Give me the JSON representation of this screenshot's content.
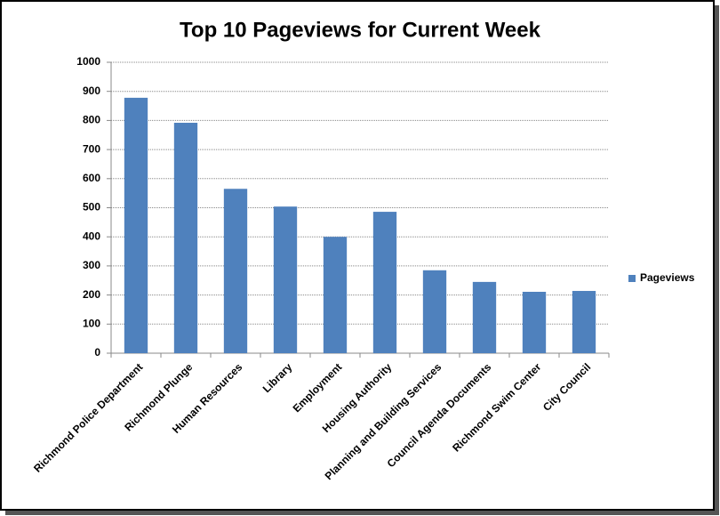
{
  "chart_data": {
    "type": "bar",
    "title": "Top 10 Pageviews for Current Week",
    "categories": [
      "Richmond Police Department",
      "Richmond Plunge",
      "Human Resources",
      "Library",
      "Employment",
      "Housing Authority",
      "Planning and Building Services",
      "Council Agenda Documents",
      "Richmond Swim Center",
      "City Council"
    ],
    "series": [
      {
        "name": "Pageviews",
        "color": "#4f81bd",
        "values": [
          878,
          792,
          565,
          504,
          400,
          486,
          285,
          245,
          211,
          214
        ]
      }
    ],
    "ylim": [
      0,
      1000
    ],
    "yticks": [
      0,
      100,
      200,
      300,
      400,
      500,
      600,
      700,
      800,
      900,
      1000
    ],
    "grid": true,
    "legend": "right"
  }
}
